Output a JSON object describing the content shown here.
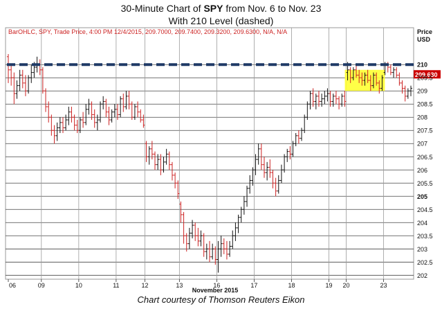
{
  "page": {
    "title_prefix": "30-Minute Chart of ",
    "title_symbol": "SPY",
    "title_suffix": " from Nov. 6 to Nov. 23",
    "subtitle": "With 210 Level (dashed)",
    "footer": "Chart courtesy of Thomson Reuters Eikon"
  },
  "chart_data": {
    "type": "ohlc",
    "header": "BarOHLC, SPY, Trade Price, 4:00 PM 12/4/2015, 209.7000, 209.7400, 209.3200, 209.6300, N/A, N/A",
    "price_label_top": "Price",
    "price_label_unit": "USD",
    "ylim": [
      201.85,
      211.4
    ],
    "y_ticks": [
      "210",
      "209.5",
      "209",
      "208.5",
      "208",
      "207.5",
      "207",
      "206.5",
      "206",
      "205.5",
      "205",
      "204.5",
      "204",
      "203.5",
      "203",
      "202.5",
      "202"
    ],
    "bold_ticks": [
      "210",
      "205"
    ],
    "x_tick_labels": [
      "06",
      "09",
      "10",
      "11",
      "12",
      "13",
      "16",
      "17",
      "18",
      "19",
      "20",
      "23"
    ],
    "x_axis_label": "November 2015",
    "last_price_label": "209.630",
    "level_line": {
      "value": 210,
      "style": "dashed",
      "color": "#1f3a66"
    },
    "highlight_box": {
      "price_range": [
        209.0,
        209.8
      ],
      "color": "#ffff33"
    },
    "colors": {
      "up": "#111111",
      "down": "#cc2222",
      "price_tag": "#cc0000"
    },
    "sessions": [
      {
        "label": "06",
        "bars": [
          [
            210.3,
            210.4,
            209.3,
            209.8
          ],
          [
            209.8,
            210.0,
            209.2,
            209.5
          ],
          [
            209.5,
            209.7,
            208.5,
            208.9
          ],
          [
            208.9,
            209.4,
            208.7,
            209.2
          ],
          [
            209.2,
            209.8,
            209.0,
            209.6
          ],
          [
            209.6,
            209.8,
            209.1,
            209.3
          ],
          [
            209.3,
            209.6,
            208.8,
            209.0
          ],
          [
            209.0,
            209.6,
            208.9,
            209.5
          ],
          [
            209.5,
            210.0,
            209.3,
            209.7
          ],
          [
            209.7,
            210.1,
            209.5,
            209.9
          ],
          [
            209.9,
            210.3,
            209.7,
            210.0
          ],
          [
            210.0,
            210.2,
            209.6,
            209.8
          ]
        ]
      },
      {
        "label": "09",
        "bars": [
          [
            209.8,
            209.9,
            208.9,
            209.0
          ],
          [
            209.0,
            209.1,
            208.2,
            208.4
          ],
          [
            208.4,
            208.6,
            207.8,
            208.0
          ],
          [
            208.0,
            208.1,
            207.3,
            207.5
          ],
          [
            207.5,
            207.7,
            207.0,
            207.3
          ],
          [
            207.3,
            207.8,
            207.1,
            207.6
          ],
          [
            207.6,
            208.0,
            207.4,
            207.8
          ],
          [
            207.8,
            208.0,
            207.4,
            207.6
          ],
          [
            207.6,
            208.1,
            207.5,
            207.9
          ],
          [
            207.9,
            208.4,
            207.7,
            208.2
          ],
          [
            208.2,
            208.4,
            207.8,
            208.0
          ],
          [
            208.0,
            208.1,
            207.5,
            207.7
          ],
          [
            207.7,
            207.9,
            207.4,
            207.5
          ]
        ]
      },
      {
        "label": "10",
        "bars": [
          [
            207.5,
            208.0,
            207.4,
            207.9
          ],
          [
            207.9,
            208.2,
            207.6,
            207.8
          ],
          [
            207.8,
            208.5,
            207.7,
            208.3
          ],
          [
            208.3,
            208.7,
            208.1,
            208.5
          ],
          [
            208.5,
            208.6,
            207.9,
            208.1
          ],
          [
            208.1,
            208.3,
            207.6,
            207.8
          ],
          [
            207.8,
            208.1,
            207.5,
            207.9
          ],
          [
            207.9,
            208.6,
            207.8,
            208.5
          ],
          [
            208.5,
            208.8,
            208.3,
            208.6
          ],
          [
            208.6,
            208.7,
            208.0,
            208.2
          ],
          [
            208.2,
            208.4,
            207.7,
            207.9
          ],
          [
            207.9,
            208.3,
            207.8,
            208.2
          ],
          [
            208.2,
            208.5,
            208.0,
            208.3
          ]
        ]
      },
      {
        "label": "11",
        "bars": [
          [
            208.3,
            208.5,
            207.9,
            208.1
          ],
          [
            208.1,
            208.8,
            208.0,
            208.7
          ],
          [
            208.7,
            208.9,
            208.2,
            208.4
          ],
          [
            208.4,
            209.0,
            208.3,
            208.8
          ],
          [
            208.8,
            209.0,
            208.3,
            208.5
          ],
          [
            208.5,
            208.6,
            207.9,
            208.0
          ],
          [
            208.0,
            208.5,
            207.9,
            208.4
          ],
          [
            208.4,
            208.6,
            208.0,
            208.2
          ],
          [
            208.2,
            208.3,
            207.8,
            207.9
          ],
          [
            207.9,
            208.1,
            207.6,
            207.7
          ]
        ]
      },
      {
        "label": "12",
        "bars": [
          [
            207.0,
            207.1,
            206.3,
            206.5
          ],
          [
            206.5,
            206.9,
            206.2,
            206.8
          ],
          [
            206.8,
            207.1,
            206.4,
            206.6
          ],
          [
            206.6,
            206.7,
            206.0,
            206.2
          ],
          [
            206.2,
            206.6,
            206.0,
            206.4
          ],
          [
            206.4,
            206.6,
            205.8,
            206.0
          ],
          [
            206.0,
            206.5,
            205.9,
            206.3
          ],
          [
            206.3,
            206.8,
            206.2,
            206.6
          ],
          [
            206.6,
            206.7,
            206.0,
            206.2
          ],
          [
            206.2,
            206.3,
            205.6,
            205.8
          ],
          [
            205.8,
            205.9,
            205.3,
            205.5
          ],
          [
            205.5,
            205.6,
            204.9,
            205.1
          ]
        ]
      },
      {
        "label": "13",
        "bars": [
          [
            204.7,
            204.8,
            204.0,
            204.3
          ],
          [
            204.3,
            204.4,
            203.2,
            203.5
          ],
          [
            203.5,
            203.6,
            202.9,
            203.2
          ],
          [
            203.2,
            203.8,
            203.0,
            203.6
          ],
          [
            203.6,
            204.1,
            203.4,
            203.9
          ],
          [
            203.9,
            204.0,
            203.3,
            203.5
          ],
          [
            203.5,
            203.8,
            203.1,
            203.3
          ],
          [
            203.3,
            203.7,
            203.1,
            203.5
          ],
          [
            203.5,
            203.6,
            202.7,
            202.9
          ],
          [
            202.9,
            203.2,
            202.6,
            203.0
          ],
          [
            203.0,
            203.3,
            202.5,
            202.7
          ],
          [
            202.7,
            203.2,
            202.6,
            203.0
          ],
          [
            203.0,
            203.1,
            202.4,
            202.6
          ]
        ]
      },
      {
        "label": "16",
        "bars": [
          [
            202.6,
            203.3,
            202.1,
            203.0
          ],
          [
            203.0,
            203.5,
            202.7,
            203.2
          ],
          [
            203.2,
            203.4,
            202.8,
            203.0
          ],
          [
            203.0,
            203.3,
            202.6,
            202.8
          ],
          [
            202.8,
            203.3,
            202.7,
            203.1
          ],
          [
            203.1,
            203.7,
            203.0,
            203.5
          ],
          [
            203.5,
            204.0,
            203.3,
            203.8
          ],
          [
            203.8,
            204.3,
            203.6,
            204.2
          ],
          [
            204.2,
            204.6,
            204.0,
            204.5
          ],
          [
            204.5,
            205.0,
            204.3,
            204.8
          ],
          [
            204.8,
            205.4,
            204.6,
            205.3
          ],
          [
            205.3,
            205.8,
            205.1,
            205.6
          ],
          [
            205.6,
            206.1,
            205.4,
            206.0
          ]
        ]
      },
      {
        "label": "17",
        "bars": [
          [
            206.0,
            206.6,
            205.8,
            206.4
          ],
          [
            206.4,
            207.0,
            206.2,
            206.8
          ],
          [
            206.8,
            207.0,
            206.0,
            206.2
          ],
          [
            206.2,
            206.5,
            205.7,
            205.9
          ],
          [
            205.9,
            206.3,
            205.6,
            206.1
          ],
          [
            206.1,
            206.4,
            205.7,
            205.9
          ],
          [
            205.9,
            206.0,
            205.3,
            205.5
          ],
          [
            205.5,
            205.7,
            205.0,
            205.2
          ],
          [
            205.2,
            205.8,
            205.1,
            205.6
          ],
          [
            205.6,
            206.2,
            205.5,
            206.0
          ],
          [
            206.0,
            206.6,
            205.9,
            206.5
          ],
          [
            206.5,
            206.8,
            206.3,
            206.7
          ],
          [
            206.7,
            206.9,
            206.4,
            206.6
          ]
        ]
      },
      {
        "label": "18",
        "bars": [
          [
            206.6,
            207.1,
            206.5,
            207.0
          ],
          [
            207.0,
            207.4,
            206.9,
            207.3
          ],
          [
            207.3,
            207.5,
            207.0,
            207.2
          ],
          [
            207.2,
            207.6,
            207.1,
            207.5
          ],
          [
            207.5,
            208.1,
            207.4,
            208.0
          ],
          [
            208.0,
            208.6,
            207.9,
            208.5
          ],
          [
            208.5,
            209.0,
            208.3,
            208.9
          ],
          [
            208.9,
            209.1,
            208.4,
            208.6
          ],
          [
            208.6,
            208.9,
            208.3,
            208.8
          ],
          [
            208.8,
            209.0,
            208.4,
            208.6
          ],
          [
            208.6,
            208.9,
            208.4,
            208.7
          ],
          [
            208.7,
            209.0,
            208.5,
            208.8
          ],
          [
            208.8,
            209.1,
            208.6,
            208.9
          ]
        ]
      },
      {
        "label": "19",
        "bars": [
          [
            208.9,
            209.0,
            208.4,
            208.6
          ],
          [
            208.6,
            208.9,
            208.4,
            208.8
          ],
          [
            208.8,
            209.0,
            208.5,
            208.7
          ],
          [
            208.7,
            208.8,
            208.3,
            208.5
          ],
          [
            208.5,
            208.9,
            208.4,
            208.8
          ],
          [
            208.8,
            209.0,
            208.4,
            208.6
          ]
        ]
      },
      {
        "label": "20",
        "bars": [
          [
            209.7,
            210.1,
            209.4,
            209.8
          ],
          [
            209.8,
            209.9,
            209.3,
            209.5
          ],
          [
            209.5,
            209.9,
            209.4,
            209.8
          ],
          [
            209.8,
            210.0,
            209.5,
            209.6
          ],
          [
            209.6,
            209.8,
            209.3,
            209.5
          ],
          [
            209.5,
            209.7,
            209.2,
            209.4
          ],
          [
            209.4,
            209.7,
            209.2,
            209.6
          ],
          [
            209.6,
            209.8,
            209.3,
            209.4
          ],
          [
            209.4,
            209.6,
            209.0,
            209.2
          ],
          [
            209.2,
            209.7,
            209.1,
            209.6
          ],
          [
            209.6,
            209.7,
            209.2,
            209.3
          ],
          [
            209.3,
            209.4,
            208.9,
            209.1
          ],
          [
            209.1,
            209.6,
            209.0,
            209.5
          ]
        ]
      },
      {
        "label": "23",
        "bars": [
          [
            209.7,
            210.1,
            209.6,
            210.0
          ],
          [
            210.0,
            210.1,
            209.7,
            209.9
          ],
          [
            209.9,
            210.0,
            209.6,
            209.7
          ],
          [
            209.7,
            209.9,
            209.5,
            209.8
          ],
          [
            209.8,
            209.9,
            209.5,
            209.6
          ],
          [
            209.6,
            209.7,
            209.2,
            209.3
          ],
          [
            209.3,
            209.4,
            208.9,
            209.1
          ],
          [
            209.1,
            209.2,
            208.6,
            208.8
          ],
          [
            208.8,
            209.1,
            208.7,
            209.0
          ],
          [
            209.0,
            209.2,
            208.8,
            209.1
          ]
        ]
      }
    ]
  }
}
